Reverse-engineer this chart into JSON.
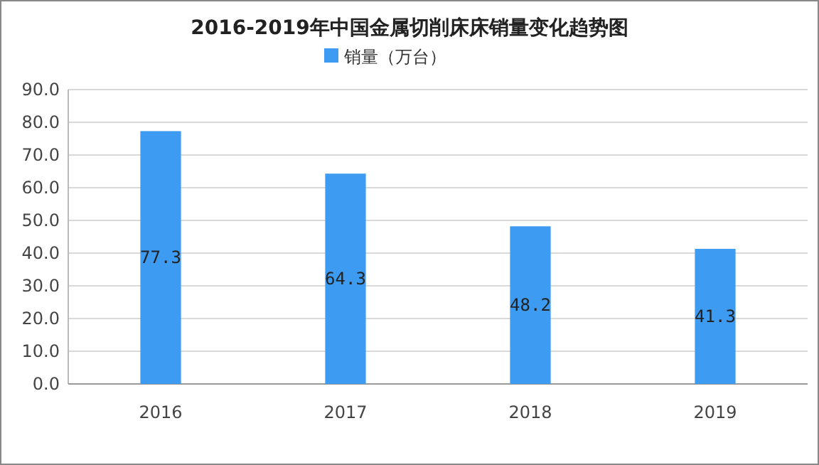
{
  "chart_data": {
    "type": "bar",
    "title": "2016-2019年中国金属切削床床销量变化趋势图",
    "categories": [
      "2016",
      "2017",
      "2018",
      "2019"
    ],
    "series": [
      {
        "name": "销量（万台）",
        "color": "#3d9cf2",
        "values": [
          77.3,
          64.3,
          48.2,
          41.3
        ]
      }
    ],
    "ylim": [
      0,
      90
    ],
    "yticks": [
      {
        "value": 0,
        "label": "0.0"
      },
      {
        "value": 10,
        "label": "10.0"
      },
      {
        "value": 20,
        "label": "20.0"
      },
      {
        "value": 30,
        "label": "30.0"
      },
      {
        "value": 40,
        "label": "40.0"
      },
      {
        "value": 50,
        "label": "50.0"
      },
      {
        "value": 60,
        "label": "60.0"
      },
      {
        "value": 70,
        "label": "70.0"
      },
      {
        "value": 80,
        "label": "80.0"
      },
      {
        "value": 90,
        "label": "90.0"
      }
    ],
    "grid": "y",
    "legend": "top",
    "data_labels": true
  }
}
